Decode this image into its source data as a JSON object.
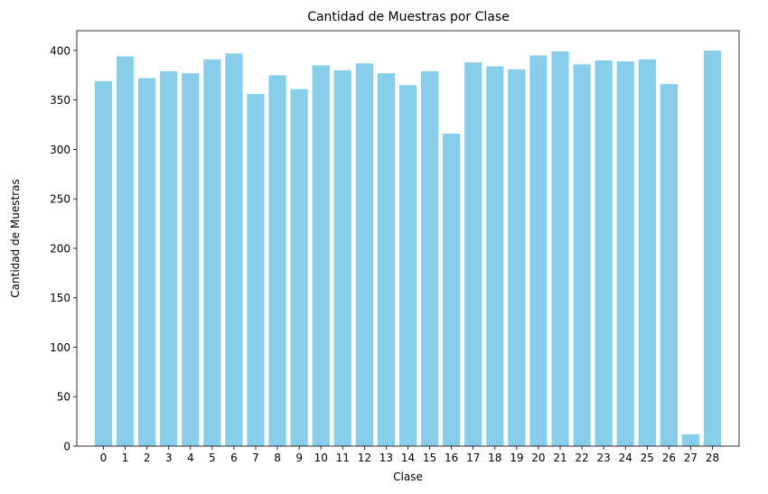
{
  "chart_data": {
    "type": "bar",
    "title": "Cantidad de Muestras por Clase",
    "xlabel": "Clase",
    "ylabel": "Cantidad de Muestras",
    "categories": [
      "0",
      "1",
      "2",
      "3",
      "4",
      "5",
      "6",
      "7",
      "8",
      "9",
      "10",
      "11",
      "12",
      "13",
      "14",
      "15",
      "16",
      "17",
      "18",
      "19",
      "20",
      "21",
      "22",
      "23",
      "24",
      "25",
      "26",
      "27",
      "28"
    ],
    "values": [
      369,
      394,
      372,
      379,
      377,
      391,
      397,
      356,
      375,
      361,
      385,
      380,
      387,
      377,
      365,
      379,
      316,
      388,
      384,
      381,
      395,
      399,
      386,
      390,
      389,
      391,
      366,
      12,
      400
    ],
    "ylim": [
      0,
      420
    ],
    "yticks": [
      0,
      50,
      100,
      150,
      200,
      250,
      300,
      350,
      400
    ],
    "bar_color": "#87ceeb",
    "grid": false,
    "legend": "none"
  }
}
